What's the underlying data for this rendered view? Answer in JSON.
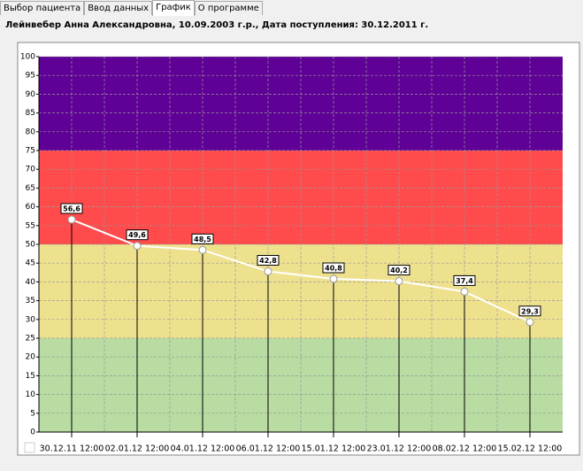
{
  "tabs": [
    "Выбор пациента",
    "Ввод данных",
    "График",
    "О программе"
  ],
  "header": "Лейнвебер Анна Александровна, 10.09.2003 г.р., Дата поступления: 30.12.2011 г.",
  "chart_data": {
    "type": "line",
    "categories": [
      "30.12.11 12:00",
      "02.01.12 12:00",
      "04.01.12 12:00",
      "06.01.12 12:00",
      "15.01.12 12:00",
      "23.01.12 12:00",
      "08.02.12 12:00",
      "15.02.12 12:00"
    ],
    "values": [
      56.6,
      49.6,
      48.5,
      42.8,
      40.8,
      40.2,
      37.4,
      29.3
    ],
    "value_labels": [
      "56,6",
      "49,6",
      "48,5",
      "42,8",
      "40,8",
      "40,2",
      "37,4",
      "29,3"
    ],
    "color": "#ffffff",
    "ylim": [
      0,
      100
    ],
    "yticks": [
      0,
      5,
      10,
      15,
      20,
      25,
      30,
      35,
      40,
      45,
      50,
      55,
      60,
      65,
      70,
      75,
      80,
      85,
      90,
      95,
      100
    ],
    "grid": true,
    "bands": [
      {
        "from": 0,
        "to": 25,
        "color": "#b8dca2"
      },
      {
        "from": 25,
        "to": 50,
        "color": "#eee18e"
      },
      {
        "from": 50,
        "to": 75,
        "color": "#ff4b4b"
      },
      {
        "from": 75,
        "to": 100,
        "color": "#5f0096"
      }
    ]
  }
}
